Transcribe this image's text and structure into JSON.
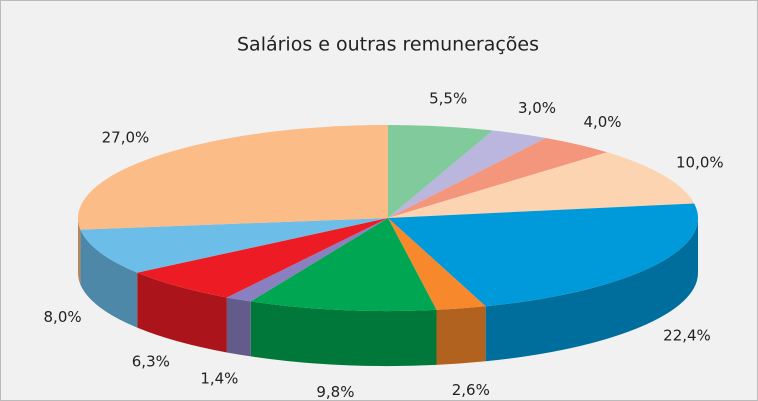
{
  "chart_data": {
    "type": "pie3d",
    "title": "Salários e outras remunerações",
    "values": [
      5.5,
      3.0,
      4.0,
      10.0,
      22.4,
      2.6,
      9.8,
      1.4,
      6.3,
      8.0,
      27.0
    ],
    "value_labels": [
      "5,5%",
      "3,0%",
      "4,0%",
      "10,0%",
      "22,4%",
      "2,6%",
      "9,8%",
      "1,4%",
      "6,3%",
      "8,0%",
      "27,0%"
    ],
    "colors": [
      "#80ca9b",
      "#bab6dd",
      "#f4967b",
      "#fdd4b1",
      "#0099da",
      "#f7882b",
      "#00a651",
      "#8a80c1",
      "#ed1c24",
      "#6dbde9",
      "#fbbc87"
    ]
  }
}
